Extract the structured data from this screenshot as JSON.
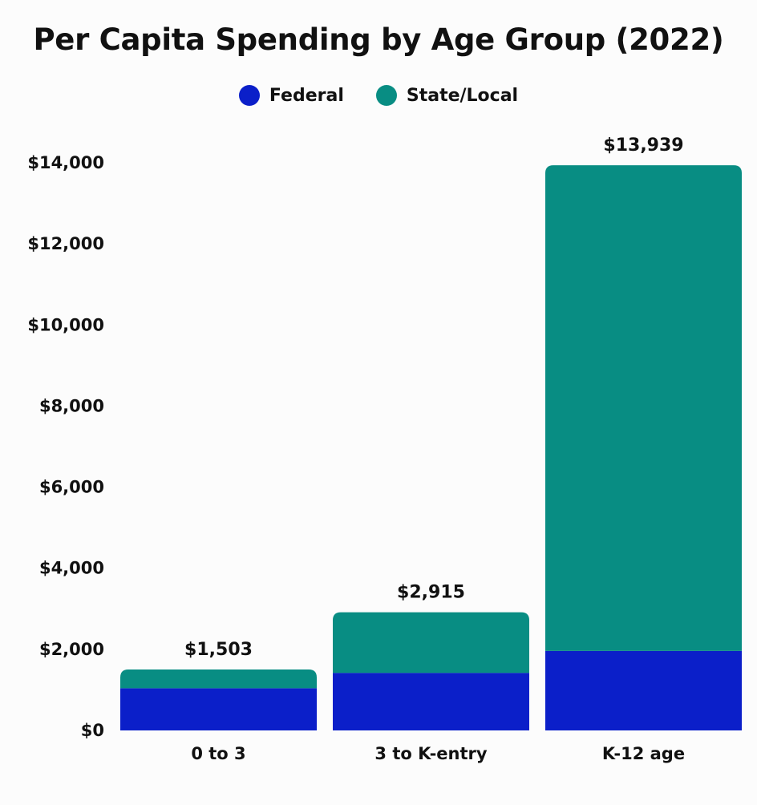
{
  "chart_data": {
    "type": "bar",
    "stacked": true,
    "title": "Per Capita Spending by Age Group (2022)",
    "categories": [
      "0 to 3",
      "3 to K-entry",
      "K-12 age"
    ],
    "series": [
      {
        "name": "Federal",
        "color": "#0b1fc9",
        "values": [
          1040,
          1420,
          1960
        ]
      },
      {
        "name": "State/Local",
        "color": "#088d83",
        "values": [
          463,
          1495,
          11979
        ]
      }
    ],
    "totals": [
      1503,
      2915,
      13939
    ],
    "total_labels": [
      "$1,503",
      "$2,915",
      "$13,939"
    ],
    "yticks": [
      0,
      2000,
      4000,
      6000,
      8000,
      10000,
      12000,
      14000
    ],
    "ytick_labels": [
      "$0",
      "$2,000",
      "$4,000",
      "$6,000",
      "$8,000",
      "$10,000",
      "$12,000",
      "$14,000"
    ],
    "ylim": [
      0,
      14000
    ],
    "xlabel": "",
    "ylabel": "",
    "legend_position": "top-center",
    "grid": false
  }
}
